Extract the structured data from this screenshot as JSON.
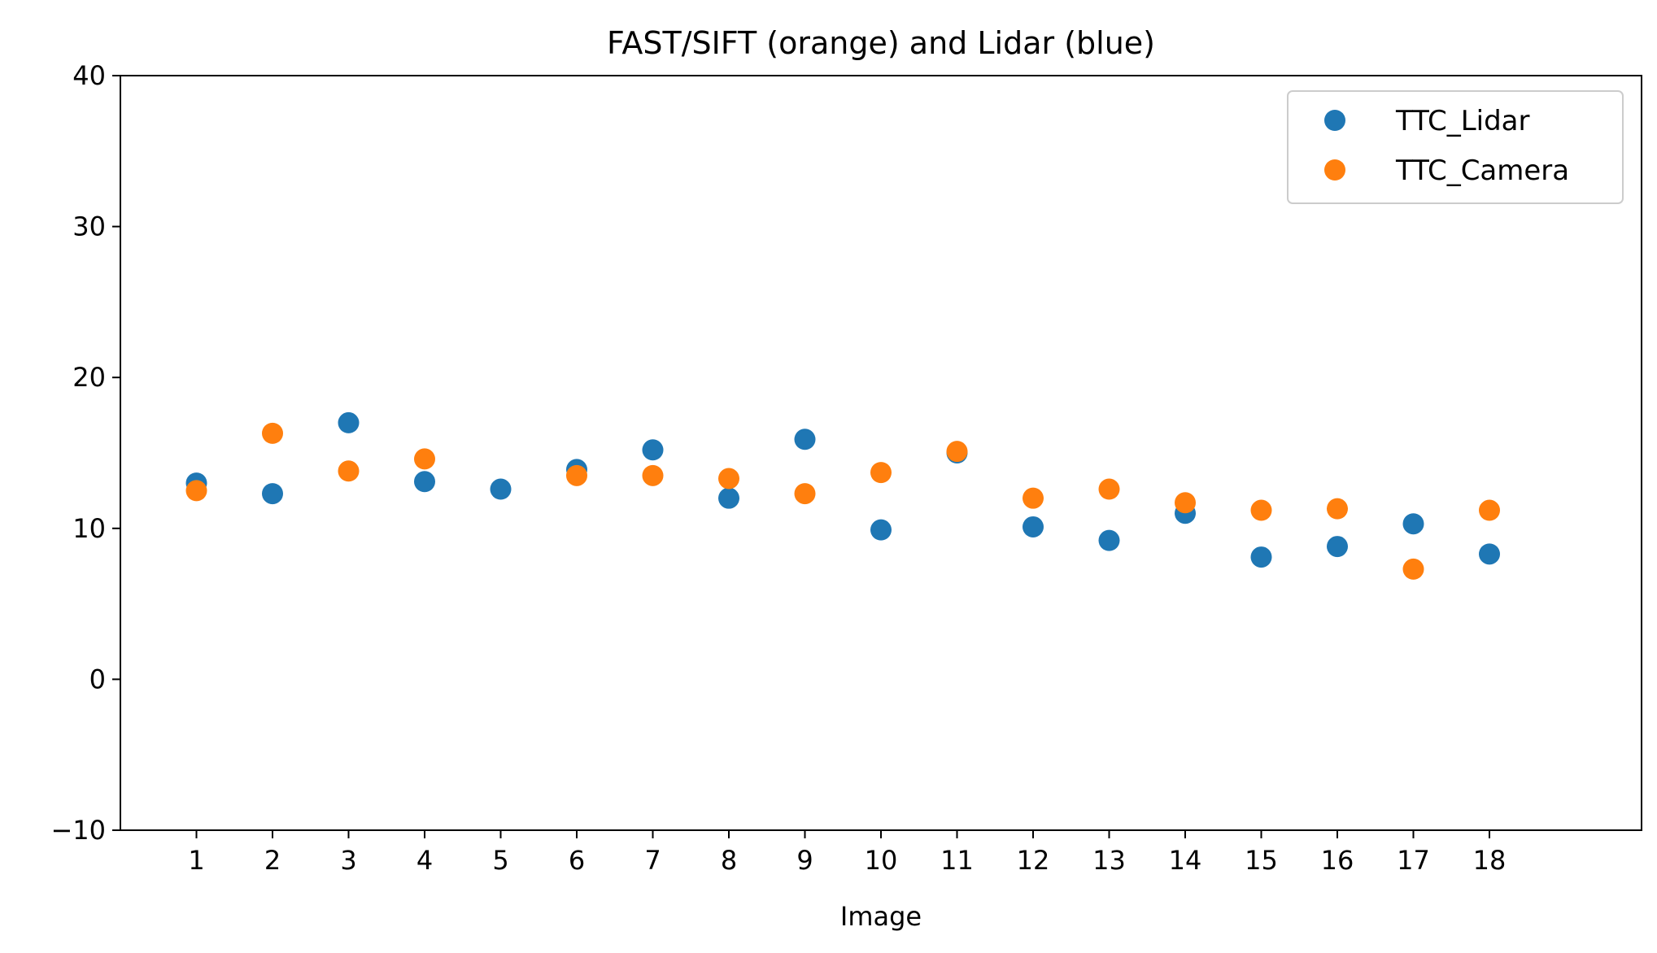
{
  "chart_data": {
    "type": "scatter",
    "title": "FAST/SIFT (orange) and Lidar (blue)",
    "xlabel": "Image",
    "ylabel": "",
    "xlim": [
      0,
      20
    ],
    "ylim": [
      -10,
      40
    ],
    "x_ticks": [
      1,
      2,
      3,
      4,
      5,
      6,
      7,
      8,
      9,
      10,
      11,
      12,
      13,
      14,
      15,
      16,
      17,
      18
    ],
    "y_ticks": [
      -10,
      0,
      10,
      20,
      30,
      40
    ],
    "y_tick_labels": [
      "−10",
      "0",
      "10",
      "20",
      "30",
      "40"
    ],
    "grid": false,
    "legend": "top-right",
    "x": [
      1,
      2,
      3,
      4,
      5,
      6,
      7,
      8,
      9,
      10,
      11,
      12,
      13,
      14,
      15,
      16,
      17,
      18
    ],
    "series": [
      {
        "name": "TTC_Lidar",
        "color": "#1f77b4",
        "values": [
          13.0,
          12.3,
          17.0,
          13.1,
          12.6,
          13.9,
          15.2,
          12.0,
          15.9,
          9.9,
          15.0,
          10.1,
          9.2,
          11.0,
          8.1,
          8.8,
          10.3,
          8.3
        ]
      },
      {
        "name": "TTC_Camera",
        "color": "#ff7f0e",
        "values": [
          12.5,
          16.3,
          13.8,
          14.6,
          null,
          13.5,
          13.5,
          13.3,
          12.3,
          13.7,
          15.1,
          12.0,
          12.6,
          11.7,
          11.2,
          11.3,
          7.3,
          11.2
        ]
      }
    ]
  }
}
